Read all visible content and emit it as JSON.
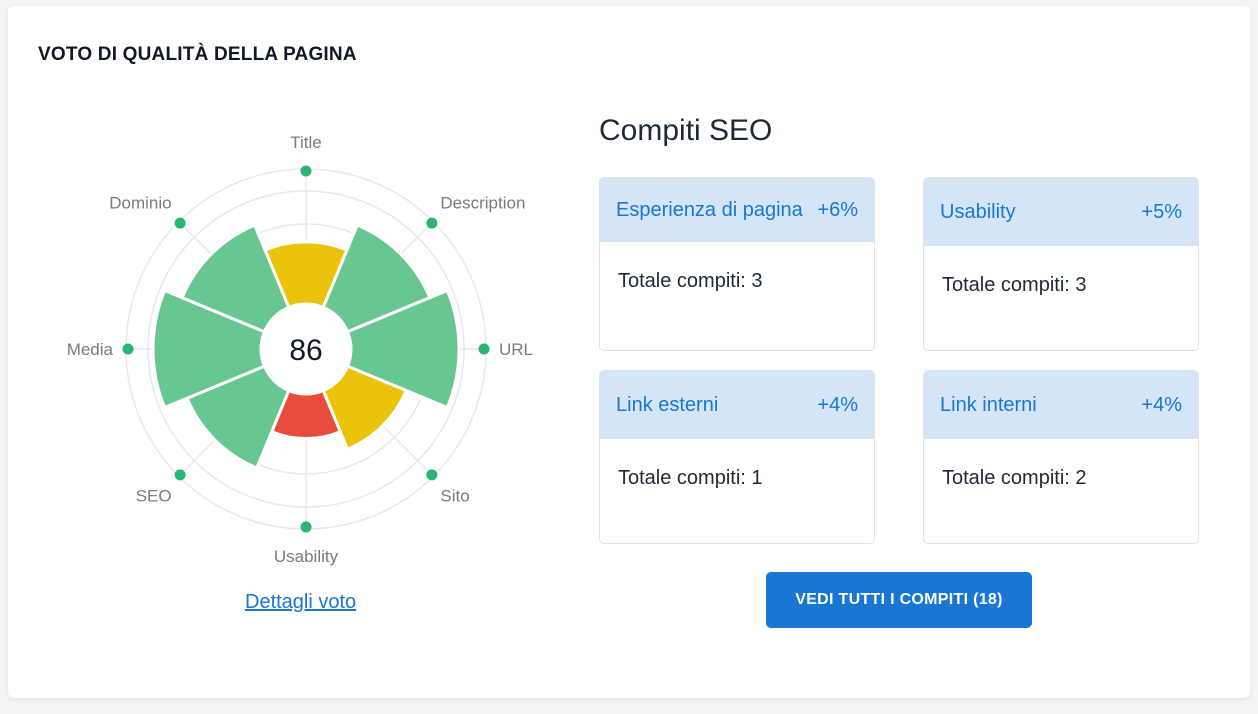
{
  "page_title": "VOTO DI QUALITÀ DELLA PAGINA",
  "colors": {
    "good": "#68c791",
    "warning": "#ecc30b",
    "bad": "#e74c3c",
    "accent": "#1976d2",
    "marker": "#2bb573"
  },
  "radar": {
    "score": "86",
    "max": 100,
    "axes": [
      {
        "label": "Title",
        "value": 46,
        "status": "warning"
      },
      {
        "label": "Description",
        "value": 66,
        "status": "good"
      },
      {
        "label": "URL",
        "value": 80,
        "status": "good"
      },
      {
        "label": "Sito",
        "value": 47,
        "status": "warning"
      },
      {
        "label": "Usability",
        "value": 33,
        "status": "bad"
      },
      {
        "label": "SEO",
        "value": 62,
        "status": "good"
      },
      {
        "label": "Media",
        "value": 80,
        "status": "good"
      },
      {
        "label": "Dominio",
        "value": 66,
        "status": "good"
      }
    ]
  },
  "details_link": "Dettagli voto",
  "tasks_section": {
    "title": "Compiti SEO",
    "cards": [
      {
        "name": "Esperienza di pagina",
        "pct": "+6%",
        "total": "Totale compiti: 3"
      },
      {
        "name": "Usability",
        "pct": "+5%",
        "total": "Totale compiti: 3"
      },
      {
        "name": "Link esterni",
        "pct": "+4%",
        "total": "Totale compiti: 1"
      },
      {
        "name": "Link interni",
        "pct": "+4%",
        "total": "Totale compiti: 2"
      }
    ],
    "cta_label": "VEDI TUTTI I COMPITI (18)"
  }
}
